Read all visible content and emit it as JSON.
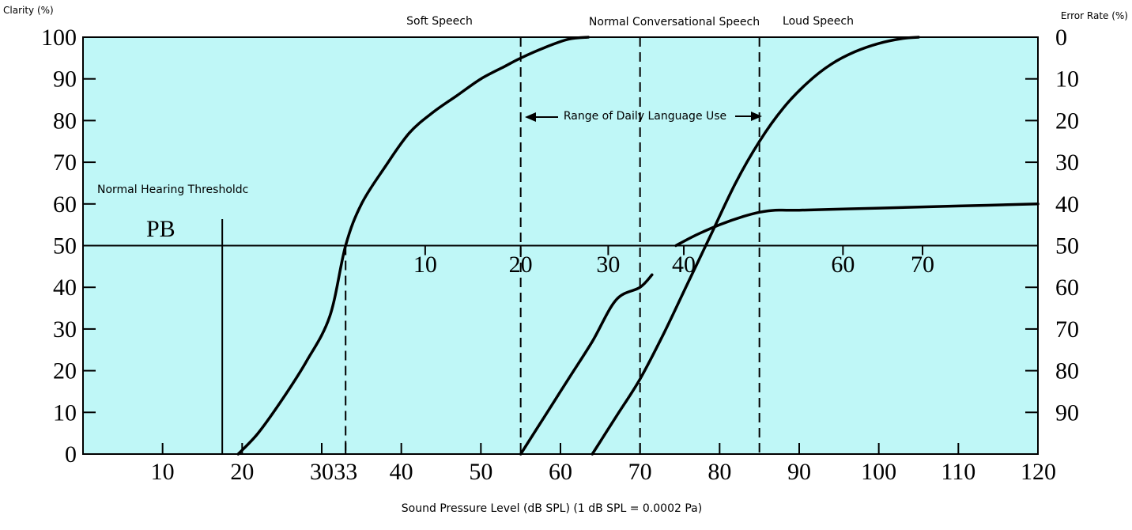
{
  "chart_data": {
    "type": "line",
    "xlabel": "Sound Pressure Level (dB SPL) (1 dB SPL = 0.0002 Pa)",
    "ylabel_left": "Clarity (%)",
    "ylabel_right": "Error Rate (%)",
    "x_ticks": [
      "10",
      "20",
      "30",
      "33",
      "40",
      "50",
      "60",
      "70",
      "80",
      "90",
      "100",
      "110",
      "120"
    ],
    "x_tick_values": [
      10,
      20,
      30,
      33,
      40,
      50,
      60,
      70,
      80,
      90,
      100,
      110,
      120
    ],
    "y_left_ticks": [
      "0",
      "10",
      "20",
      "30",
      "40",
      "50",
      "60",
      "70",
      "80",
      "90",
      "100"
    ],
    "y_left_tick_values": [
      0,
      10,
      20,
      30,
      40,
      50,
      60,
      70,
      80,
      90,
      100
    ],
    "y_right_ticks": [
      "90",
      "80",
      "70",
      "60",
      "50",
      "40",
      "30",
      "20",
      "10",
      "0"
    ],
    "y_right_tick_values": [
      90,
      80,
      70,
      60,
      50,
      40,
      30,
      20,
      10,
      0
    ],
    "pb_scale_ticks": [
      "10",
      "20",
      "30",
      "40",
      "60",
      "70"
    ],
    "pb_scale_tick_x": [
      43,
      55,
      66,
      75.5,
      95.5,
      105.5
    ],
    "xlim": [
      0,
      120
    ],
    "ylim": [
      0,
      100
    ],
    "grid": false,
    "background_color": "#bff7f7",
    "line_color": "#000000",
    "annotations": {
      "soft_speech": "Soft Speech",
      "normal_speech": "Normal Conversational Speech",
      "loud_speech": "Loud Speech",
      "daily_range": "Range of Daily Language Use",
      "normal_threshold": "Normal Hearing Thresholdc",
      "pb": "PB"
    },
    "vertical_lines": {
      "pb_threshold_x": 17.5,
      "dashed_x": [
        33,
        55,
        70,
        85
      ]
    },
    "reference_line_y": 50,
    "series": [
      {
        "x": [
          19.5,
          22,
          25,
          28,
          31,
          33,
          35,
          38,
          41,
          44,
          47,
          50,
          53,
          55,
          58,
          61,
          63.5
        ],
        "y": [
          0,
          5,
          13,
          22,
          33,
          50,
          60,
          69,
          77,
          82,
          86,
          90,
          93,
          95,
          97.5,
          99.5,
          100
        ]
      },
      {
        "x": [
          55,
          58,
          61,
          64,
          67,
          70,
          71.5
        ],
        "y": [
          0,
          9,
          18,
          27,
          37,
          40,
          43
        ]
      },
      {
        "x": [
          64,
          67,
          70,
          73,
          76,
          79,
          82,
          85,
          88,
          91,
          94,
          97,
          100,
          103,
          105
        ],
        "y": [
          0,
          9,
          18,
          29,
          41,
          53,
          65,
          75,
          83,
          89,
          93.5,
          96.5,
          98.5,
          99.7,
          100
        ]
      },
      {
        "x": [
          74.5,
          77,
          80,
          83,
          85,
          87,
          90,
          100,
          110,
          120
        ],
        "y": [
          50,
          52.5,
          55,
          57,
          58,
          58.5,
          58.5,
          59,
          59.5,
          60
        ]
      }
    ]
  }
}
